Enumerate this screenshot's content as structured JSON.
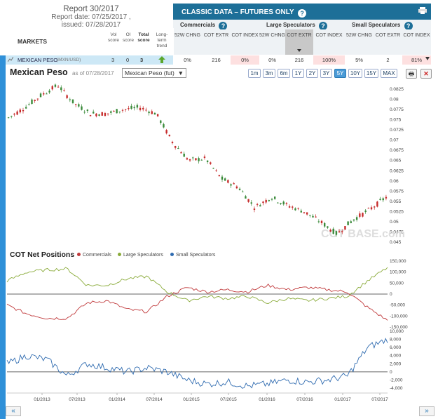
{
  "report": {
    "title": "Report 30/2017",
    "date": "Report date: 07/25/2017 ,",
    "issued": "issued: 07/28/2017"
  },
  "classic": {
    "title": "CLASSIC DATA – FUTURES ONLY",
    "help": "?"
  },
  "groups": {
    "commercials": "Commercials",
    "large": "Large Speculators",
    "small": "Small Speculators"
  },
  "headers": {
    "chng": "52W CHNG",
    "extr": "COT EXTR",
    "index": "COT INDEX"
  },
  "markets": {
    "title": "MARKETS",
    "vol": "Vol score",
    "oi": "OI score",
    "total": "Total score",
    "trend": "Long-term trend"
  },
  "row": {
    "name": "MEXICAN PESO",
    "code": "(MXN/USD)",
    "vol": "3",
    "oi": "0",
    "total": "3",
    "c_chng": "0%",
    "c_extr": "216",
    "c_index": "0%",
    "l_chng": "0%",
    "l_extr": "216",
    "l_index": "100%",
    "s_chng": "5%",
    "s_extr": "2",
    "s_index": "81%"
  },
  "price": {
    "title": "Mexican Peso",
    "asof": "as of 07/28/2017",
    "select": "Mexican Peso (fut)",
    "ranges": [
      "1m",
      "3m",
      "6m",
      "1Y",
      "2Y",
      "3Y",
      "5Y",
      "10Y",
      "15Y",
      "MAX"
    ],
    "active": "5Y",
    "watermark": "COT BASE.com"
  },
  "cot": {
    "title": "COT Net Positions",
    "legend": [
      "Commercials",
      "Large Speculators",
      "Small Speculators"
    ]
  },
  "colors": {
    "commercials": "#c0393b",
    "large": "#8aab3a",
    "small": "#2f6bb0",
    "up": "#3a8a3a",
    "down": "#c62b2b"
  },
  "nav": {
    "left": "«",
    "right": "»"
  },
  "chart_data": [
    {
      "type": "line",
      "title": "Mexican Peso",
      "ylim": [
        0.045,
        0.0825
      ],
      "yticks": [
        "0.0825",
        "0.08",
        "0.0775",
        "0.075",
        "0.0725",
        "0.07",
        "0.0675",
        "0.065",
        "0.0625",
        "0.06",
        "0.0575",
        "0.055",
        "0.0525",
        "0.05",
        "0.0475",
        "0.045"
      ],
      "x": [
        "10/2012",
        "01/2013",
        "04/2013",
        "05/2013",
        "07/2013",
        "10/2013",
        "01/2014",
        "04/2014",
        "07/2014",
        "09/2014",
        "12/2014",
        "03/2015",
        "06/2015",
        "09/2015",
        "12/2015",
        "02/2016",
        "05/2016",
        "06/2016",
        "09/2016",
        "11/2016",
        "01/2017",
        "03/2017",
        "05/2017",
        "07/2017"
      ],
      "values": [
        0.0755,
        0.078,
        0.081,
        0.0835,
        0.079,
        0.0765,
        0.0765,
        0.0775,
        0.078,
        0.0765,
        0.0695,
        0.065,
        0.0655,
        0.0605,
        0.0585,
        0.0535,
        0.056,
        0.054,
        0.0525,
        0.05,
        0.047,
        0.0505,
        0.053,
        0.056
      ]
    },
    {
      "type": "line",
      "title": "COT Net Positions",
      "ylim": [
        -150000,
        150000
      ],
      "yticks": [
        "150,000",
        "100,000",
        "50,000",
        "0",
        "-50,000",
        "-100,000",
        "-150,000"
      ],
      "x": [
        "10/2012",
        "01/2013",
        "04/2013",
        "07/2013",
        "10/2013",
        "01/2014",
        "04/2014",
        "07/2014",
        "10/2014",
        "01/2015",
        "04/2015",
        "07/2015",
        "10/2015",
        "01/2016",
        "04/2016",
        "07/2016",
        "10/2016",
        "01/2017",
        "04/2017",
        "07/2017"
      ],
      "series": [
        {
          "name": "Commercials",
          "values": [
            -50000,
            -90000,
            -110000,
            -110000,
            -40000,
            -30000,
            -70000,
            -80000,
            -10000,
            30000,
            10000,
            20000,
            10000,
            40000,
            20000,
            30000,
            20000,
            10000,
            -60000,
            -120000
          ]
        },
        {
          "name": "Large Speculators",
          "values": [
            60000,
            100000,
            110000,
            115000,
            40000,
            40000,
            70000,
            80000,
            10000,
            -30000,
            -10000,
            -20000,
            -10000,
            -40000,
            -20000,
            -30000,
            -20000,
            -10000,
            60000,
            120000
          ]
        },
        {
          "name": "Small Speculators",
          "values": [
            2000,
            4000,
            3000,
            -1000,
            2000,
            1000,
            0,
            1000,
            0,
            -2000,
            -3000,
            -2500,
            -3500,
            -3000,
            -2000,
            -2500,
            -2000,
            -1000,
            6000,
            8000
          ]
        }
      ]
    },
    {
      "type": "line",
      "ylim": [
        -4000,
        10000
      ],
      "yticks": [
        "10,000",
        "8,000",
        "6,000",
        "4,000",
        "2,000",
        "0",
        "-2,000",
        "-4,000"
      ]
    },
    {
      "type": "axis",
      "ticks": [
        "01/2013",
        "07/2013",
        "01/2014",
        "07/2014",
        "01/2015",
        "07/2015",
        "01/2016",
        "07/2016",
        "01/2017",
        "07/2017"
      ]
    }
  ]
}
